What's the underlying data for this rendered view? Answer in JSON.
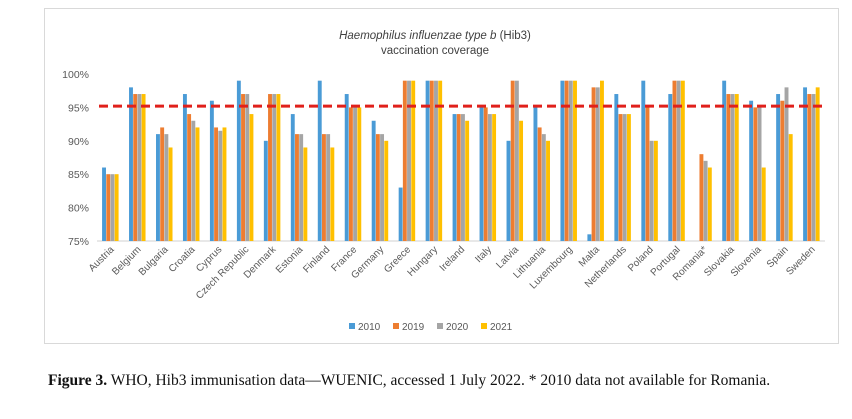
{
  "chart_data": {
    "type": "bar",
    "title_italic": "Haemophilus influenzae type b",
    "title_suffix": " (Hib3)",
    "subtitle": "vaccination coverage",
    "xlabel": "",
    "ylabel": "",
    "ylim": [
      75,
      100
    ],
    "yticks": [
      75,
      80,
      85,
      90,
      95,
      100
    ],
    "ytick_labels": [
      "75%",
      "80%",
      "85%",
      "90%",
      "95%",
      "100%"
    ],
    "grid": false,
    "legend_position": "bottom-center",
    "reference_line": {
      "value": 95.2,
      "style": "dashed",
      "color": "#e0201b"
    },
    "categories": [
      "Austria",
      "Belgium",
      "Bulgaria",
      "Croatia",
      "Cyprus",
      "Czech Republic",
      "Denmark",
      "Estonia",
      "Finland",
      "France",
      "Germany",
      "Greece",
      "Hungary",
      "Ireland",
      "Italy",
      "Latvia",
      "Lithuania",
      "Luxembourg",
      "Malta",
      "Netherlands",
      "Poland",
      "Portugal",
      "Romania*",
      "Slovakia",
      "Slovenia",
      "Spain",
      "Sweden"
    ],
    "series": [
      {
        "name": "2010",
        "color": "#4a9bd6",
        "values": [
          86,
          98,
          91,
          97,
          96,
          99,
          90,
          94,
          99,
          97,
          93,
          83,
          99,
          94,
          95,
          90,
          95,
          99,
          76,
          97,
          99,
          97,
          null,
          99,
          96,
          97,
          98
        ]
      },
      {
        "name": "2019",
        "color": "#ed7d31",
        "values": [
          85,
          97,
          92,
          94,
          92,
          97,
          97,
          91,
          91,
          95,
          91,
          99,
          99,
          94,
          95,
          99,
          92,
          99,
          98,
          94,
          95,
          99,
          88,
          97,
          95,
          96,
          97
        ]
      },
      {
        "name": "2020",
        "color": "#a5a5a5",
        "values": [
          85,
          97,
          91,
          93,
          91.5,
          97,
          97,
          91,
          91,
          95,
          91,
          99,
          99,
          94,
          94,
          99,
          91,
          99,
          98,
          94,
          90,
          99,
          87,
          97,
          95,
          98,
          97
        ]
      },
      {
        "name": "2021",
        "color": "#ffc000",
        "values": [
          85,
          97,
          89,
          92,
          92,
          94,
          97,
          89,
          89,
          95,
          90,
          99,
          99,
          93,
          94,
          93,
          90,
          99,
          99,
          94,
          90,
          99,
          86,
          97,
          86,
          91,
          98
        ]
      }
    ]
  },
  "caption": {
    "label": "Figure 3.",
    "text": " WHO, Hib3 immunisation data—WUENIC, accessed 1 July 2022. * 2010 data not available for Romania."
  }
}
